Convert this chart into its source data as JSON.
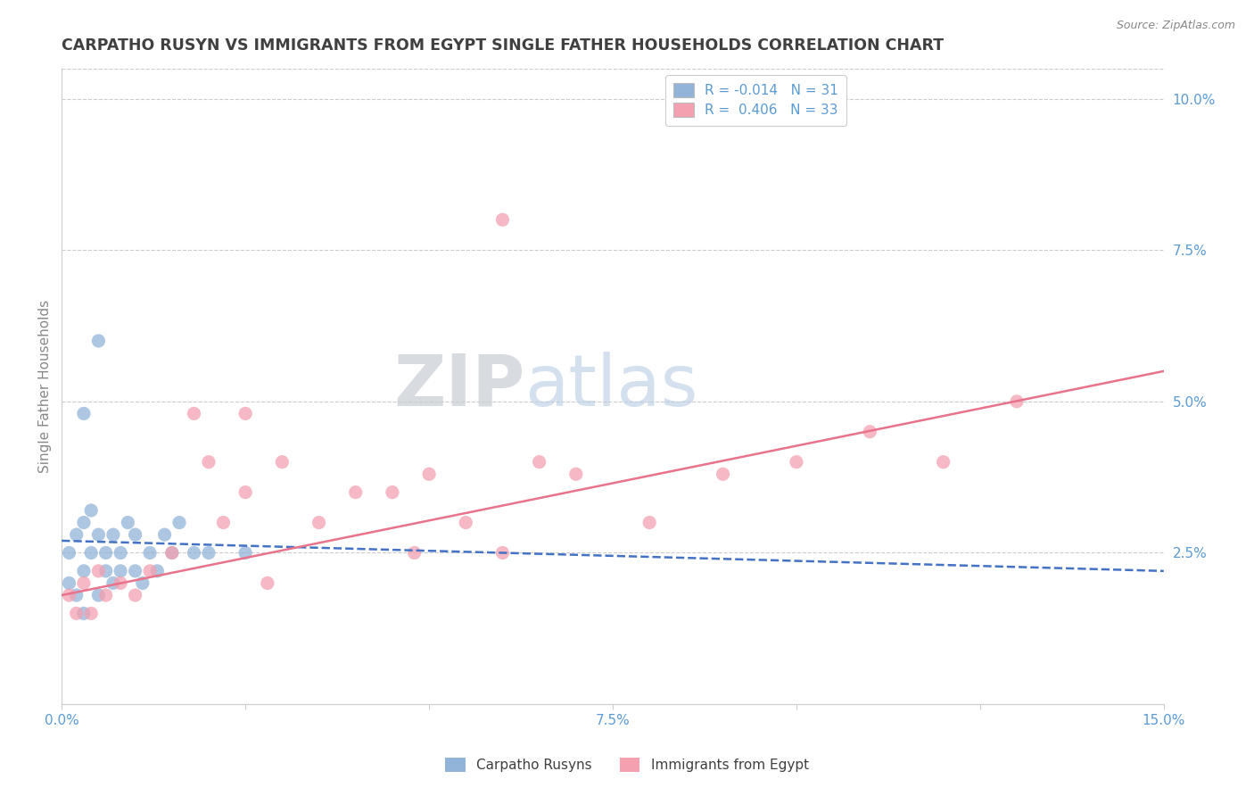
{
  "title": "CARPATHO RUSYN VS IMMIGRANTS FROM EGYPT SINGLE FATHER HOUSEHOLDS CORRELATION CHART",
  "source": "Source: ZipAtlas.com",
  "ylabel": "Single Father Households",
  "xlim": [
    0.0,
    0.15
  ],
  "ylim": [
    0.0,
    0.105
  ],
  "ytick_labels_right": [
    "2.5%",
    "5.0%",
    "7.5%",
    "10.0%"
  ],
  "ytick_vals_right": [
    0.025,
    0.05,
    0.075,
    0.1
  ],
  "legend_R_blue": "-0.014",
  "legend_N_blue": "31",
  "legend_R_pink": "0.406",
  "legend_N_pink": "33",
  "blue_x": [
    0.001,
    0.001,
    0.002,
    0.002,
    0.003,
    0.003,
    0.003,
    0.004,
    0.004,
    0.005,
    0.005,
    0.006,
    0.006,
    0.007,
    0.007,
    0.008,
    0.008,
    0.009,
    0.01,
    0.01,
    0.011,
    0.012,
    0.013,
    0.014,
    0.015,
    0.016,
    0.018,
    0.02,
    0.025,
    0.005,
    0.003
  ],
  "blue_y": [
    0.02,
    0.025,
    0.018,
    0.028,
    0.022,
    0.03,
    0.015,
    0.025,
    0.032,
    0.018,
    0.028,
    0.022,
    0.025,
    0.02,
    0.028,
    0.022,
    0.025,
    0.03,
    0.022,
    0.028,
    0.02,
    0.025,
    0.022,
    0.028,
    0.025,
    0.03,
    0.025,
    0.025,
    0.025,
    0.06,
    0.048
  ],
  "pink_x": [
    0.001,
    0.002,
    0.003,
    0.004,
    0.005,
    0.006,
    0.008,
    0.01,
    0.012,
    0.015,
    0.018,
    0.02,
    0.022,
    0.025,
    0.028,
    0.03,
    0.035,
    0.04,
    0.045,
    0.05,
    0.055,
    0.06,
    0.065,
    0.07,
    0.08,
    0.09,
    0.1,
    0.11,
    0.12,
    0.13,
    0.048,
    0.025,
    0.06
  ],
  "pink_y": [
    0.018,
    0.015,
    0.02,
    0.015,
    0.022,
    0.018,
    0.02,
    0.018,
    0.022,
    0.025,
    0.048,
    0.04,
    0.03,
    0.035,
    0.02,
    0.04,
    0.03,
    0.035,
    0.035,
    0.038,
    0.03,
    0.025,
    0.04,
    0.038,
    0.03,
    0.038,
    0.04,
    0.045,
    0.04,
    0.05,
    0.025,
    0.048,
    0.08
  ],
  "blue_color": "#92b4d8",
  "pink_color": "#f4a0b0",
  "blue_line_color": "#4472c4",
  "pink_line_color": "#e8738a",
  "background_color": "#ffffff",
  "grid_color": "#cccccc",
  "title_color": "#404040",
  "axis_label_color": "#888888",
  "tick_color": "#5b9bd5"
}
